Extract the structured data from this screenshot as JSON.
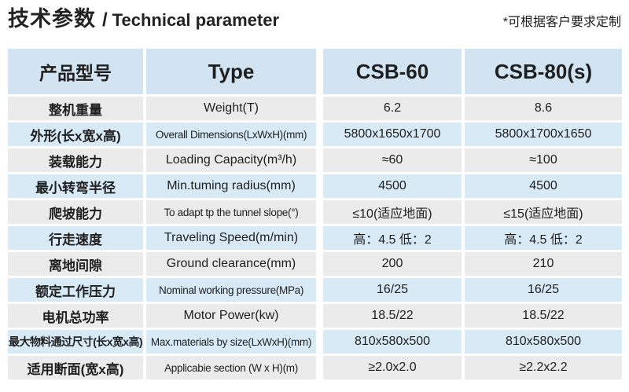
{
  "page": {
    "title_cn": "技术参数",
    "title_divider": "/",
    "title_en": "Technical parameter",
    "note": "*可根据客户要求定制"
  },
  "colors": {
    "header_bg": "#d2e4f2",
    "row_blue": "#d9eaf7",
    "row_gray": "#ebebeb",
    "text": "#1f1f1f"
  },
  "table": {
    "headers": {
      "product_cn": "产品型号",
      "type": "Type",
      "model1": "CSB-60",
      "model2": "CSB-80(s)"
    },
    "rows": [
      {
        "cn": "整机重量",
        "en": "Weight(T)",
        "csb60": "6.2",
        "csb80": "8.6"
      },
      {
        "cn": "外形(长x宽x高)",
        "en": "Overall Dimensions(LxWxH)(mm)",
        "csb60": "5800x1650x1700",
        "csb80": "5800x1700x1650"
      },
      {
        "cn": "装载能力",
        "en": "Loading Capacity(m³/h)",
        "csb60": "≈60",
        "csb80": "≈100"
      },
      {
        "cn": "最小转弯半径",
        "en": "Min.tuming radius(mm)",
        "csb60": "4500",
        "csb80": "4500"
      },
      {
        "cn": "爬坡能力",
        "en": "To adapt tp the tunnel slope(°)",
        "csb60": "≤10(适应地面)",
        "csb80": "≤15(适应地面)"
      },
      {
        "cn": "行走速度",
        "en": "Traveling Speed(m/min)",
        "csb60": "高：4.5 低：2",
        "csb80": "高：4.5 低：2"
      },
      {
        "cn": "离地间隙",
        "en": "Ground clearance(mm)",
        "csb60": "200",
        "csb80": "210"
      },
      {
        "cn": "额定工作压力",
        "en": "Nominal working pressure(MPa)",
        "csb60": "16/25",
        "csb80": "16/25"
      },
      {
        "cn": "电机总功率",
        "en": "Motor Power(kw)",
        "csb60": "18.5/22",
        "csb80": "18.5/22"
      },
      {
        "cn": "最大物料通过尺寸(长x宽x高)",
        "en": "Max.materials by size(LxWxH)(mm)",
        "csb60": "810x580x500",
        "csb80": "810x580x500"
      },
      {
        "cn": "适用断面(宽x高)",
        "en": "Applicabie section (W x H)(m)",
        "csb60": "≥2.0x2.0",
        "csb80": "≥2.2x2.2"
      }
    ]
  }
}
